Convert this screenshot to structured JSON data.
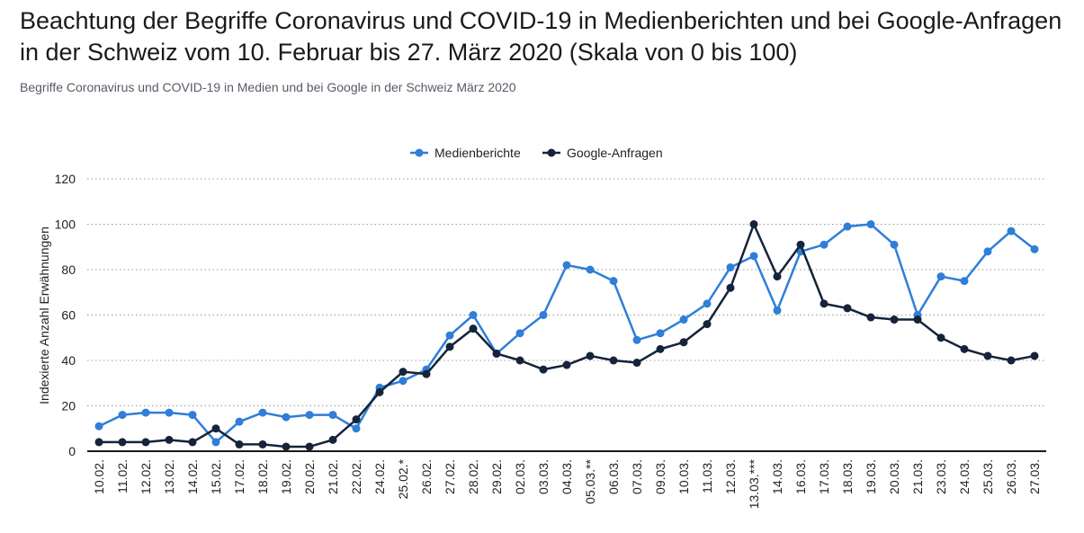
{
  "header": {
    "title": "Beachtung der Begriffe Coronavirus und COVID-19 in Medienberichten und bei Google-Anfragen in der Schweiz vom 10. Februar bis 27. März 2020 (Skala von 0 bis 100)",
    "subtitle": "Begriffe Coronavirus und COVID-19 in Medien und bei Google in der Schweiz März 2020"
  },
  "chart_data": {
    "type": "line",
    "title": "Beachtung der Begriffe Coronavirus und COVID-19 in Medienberichten und bei Google-Anfragen in der Schweiz vom 10. Februar bis 27. März 2020 (Skala von 0 bis 100)",
    "xlabel": "",
    "ylabel": "Indexierte Anzahl Erwähnungen",
    "ylim": [
      0,
      120
    ],
    "yticks": [
      0,
      20,
      40,
      60,
      80,
      100,
      120
    ],
    "grid": true,
    "legend": "top-center",
    "categories": [
      "10.02.",
      "11.02.",
      "12.02.",
      "13.02.",
      "14.02.",
      "15.02.",
      "17.02.",
      "18.02.",
      "19.02.",
      "20.02.",
      "21.02.",
      "22.02.",
      "24.02.",
      "25.02.*",
      "26.02.",
      "27.02.",
      "28.02.",
      "29.02.",
      "02.03.",
      "03.03.",
      "04.03.",
      "05.03.**",
      "06.03.",
      "07.03.",
      "09.03.",
      "10.03.",
      "11.03.",
      "12.03.",
      "13.03.***",
      "14.03.",
      "16.03.",
      "17.03.",
      "18.03.",
      "19.03.",
      "20.03.",
      "21.03.",
      "23.03.",
      "24.03.",
      "25.03.",
      "26.03.",
      "27.03."
    ],
    "series": [
      {
        "name": "Medienberichte",
        "color": "#2f7ed8",
        "values": [
          11,
          16,
          17,
          17,
          16,
          4,
          13,
          17,
          15,
          16,
          16,
          10,
          28,
          31,
          36,
          51,
          60,
          43,
          52,
          60,
          82,
          80,
          75,
          49,
          52,
          58,
          65,
          81,
          86,
          62,
          88,
          91,
          99,
          100,
          91,
          60,
          77,
          75,
          88,
          97,
          89
        ]
      },
      {
        "name": "Google-Anfragen",
        "color": "#15243a",
        "values": [
          4,
          4,
          4,
          5,
          4,
          10,
          3,
          3,
          2,
          2,
          5,
          14,
          26,
          35,
          34,
          46,
          54,
          43,
          40,
          36,
          38,
          42,
          40,
          39,
          45,
          48,
          56,
          72,
          100,
          77,
          91,
          65,
          63,
          59,
          58,
          58,
          50,
          45,
          42,
          40,
          42
        ]
      }
    ]
  }
}
